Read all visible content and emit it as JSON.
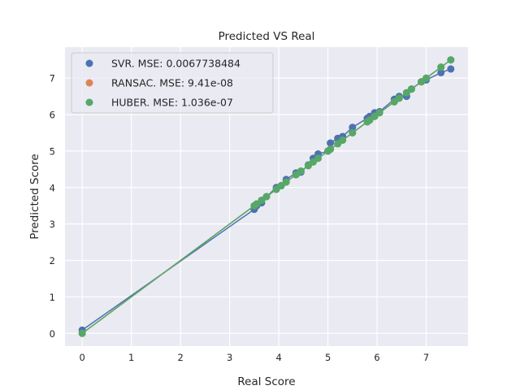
{
  "chart_data": {
    "type": "scatter",
    "title": "Predicted VS Real",
    "xlabel": "Real Score",
    "ylabel": "Predicted Score",
    "xlim": [
      -0.35,
      7.85
    ],
    "ylim": [
      -0.35,
      7.85
    ],
    "xticks": [
      0,
      1,
      2,
      3,
      4,
      5,
      6,
      7
    ],
    "yticks": [
      0,
      1,
      2,
      3,
      4,
      5,
      6,
      7
    ],
    "grid": true,
    "legend_position": "top-left",
    "background": "#eaeaf2",
    "series": [
      {
        "name": "SVR. MSE: 0.0067738484",
        "color": "#4c72b0",
        "points": [
          [
            0,
            0.09
          ],
          [
            3.5,
            3.4
          ],
          [
            3.55,
            3.5
          ],
          [
            3.65,
            3.58
          ],
          [
            3.75,
            3.75
          ],
          [
            3.95,
            4.0
          ],
          [
            4.05,
            4.05
          ],
          [
            4.15,
            4.22
          ],
          [
            4.35,
            4.4
          ],
          [
            4.45,
            4.42
          ],
          [
            4.6,
            4.62
          ],
          [
            4.7,
            4.8
          ],
          [
            4.8,
            4.92
          ],
          [
            5.0,
            5.0
          ],
          [
            5.05,
            5.22
          ],
          [
            5.2,
            5.35
          ],
          [
            5.3,
            5.4
          ],
          [
            5.5,
            5.65
          ],
          [
            5.8,
            5.9
          ],
          [
            5.85,
            5.95
          ],
          [
            5.95,
            6.05
          ],
          [
            6.05,
            6.08
          ],
          [
            6.35,
            6.42
          ],
          [
            6.45,
            6.5
          ],
          [
            6.6,
            6.5
          ],
          [
            6.7,
            6.7
          ],
          [
            6.9,
            6.9
          ],
          [
            7.0,
            6.95
          ],
          [
            7.3,
            7.15
          ],
          [
            7.5,
            7.25
          ]
        ]
      },
      {
        "name": "RANSAC. MSE: 9.41e-08",
        "color": "#dd8452",
        "points": [
          [
            0,
            0
          ],
          [
            3.5,
            3.5
          ],
          [
            3.55,
            3.55
          ],
          [
            3.65,
            3.65
          ],
          [
            3.75,
            3.75
          ],
          [
            3.95,
            3.95
          ],
          [
            4.05,
            4.05
          ],
          [
            4.15,
            4.15
          ],
          [
            4.35,
            4.35
          ],
          [
            4.45,
            4.45
          ],
          [
            4.6,
            4.6
          ],
          [
            4.7,
            4.7
          ],
          [
            4.8,
            4.8
          ],
          [
            5.0,
            5.0
          ],
          [
            5.05,
            5.05
          ],
          [
            5.2,
            5.2
          ],
          [
            5.3,
            5.3
          ],
          [
            5.5,
            5.5
          ],
          [
            5.8,
            5.8
          ],
          [
            5.85,
            5.85
          ],
          [
            5.95,
            5.95
          ],
          [
            6.05,
            6.05
          ],
          [
            6.35,
            6.35
          ],
          [
            6.45,
            6.45
          ],
          [
            6.6,
            6.6
          ],
          [
            6.7,
            6.7
          ],
          [
            6.9,
            6.9
          ],
          [
            7.0,
            7.0
          ],
          [
            7.3,
            7.3
          ],
          [
            7.5,
            7.5
          ]
        ]
      },
      {
        "name": "HUBER. MSE: 1.036e-07",
        "color": "#55a868",
        "points": [
          [
            0,
            0
          ],
          [
            3.5,
            3.5
          ],
          [
            3.55,
            3.55
          ],
          [
            3.65,
            3.65
          ],
          [
            3.75,
            3.75
          ],
          [
            3.95,
            3.95
          ],
          [
            4.05,
            4.05
          ],
          [
            4.15,
            4.15
          ],
          [
            4.35,
            4.35
          ],
          [
            4.45,
            4.45
          ],
          [
            4.6,
            4.6
          ],
          [
            4.7,
            4.7
          ],
          [
            4.8,
            4.8
          ],
          [
            5.0,
            5.0
          ],
          [
            5.05,
            5.05
          ],
          [
            5.2,
            5.2
          ],
          [
            5.3,
            5.3
          ],
          [
            5.5,
            5.5
          ],
          [
            5.8,
            5.8
          ],
          [
            5.85,
            5.85
          ],
          [
            5.95,
            5.95
          ],
          [
            6.05,
            6.05
          ],
          [
            6.35,
            6.35
          ],
          [
            6.45,
            6.45
          ],
          [
            6.6,
            6.6
          ],
          [
            6.7,
            6.7
          ],
          [
            6.9,
            6.9
          ],
          [
            7.0,
            7.0
          ],
          [
            7.3,
            7.3
          ],
          [
            7.5,
            7.5
          ]
        ]
      }
    ]
  }
}
